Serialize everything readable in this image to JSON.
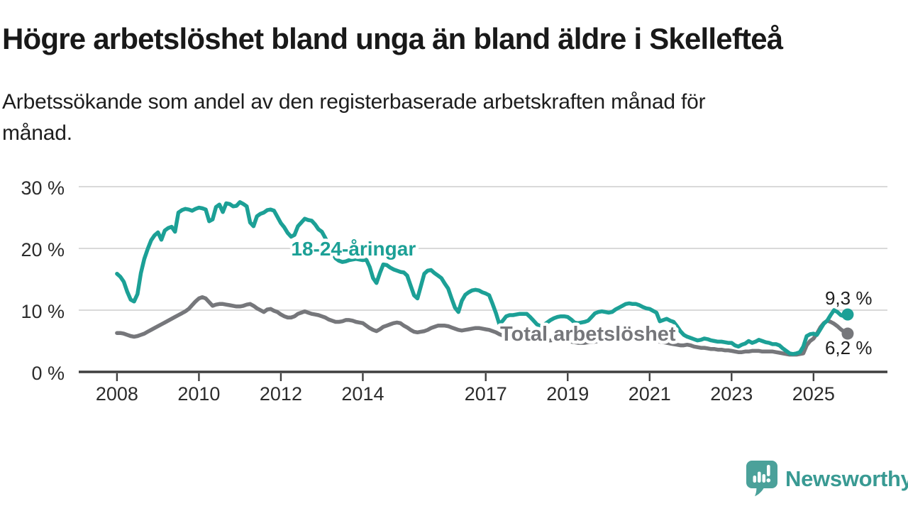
{
  "header": {
    "title": "Högre arbetslöshet bland unga än bland äldre i Skellefteå",
    "subtitle": "Arbetssökande som andel av den registerbaserade arbetskraften månad för\nmånad."
  },
  "chart_data": {
    "type": "line",
    "title": "Högre arbetslöshet bland unga än bland äldre i Skellefteå",
    "subtitle": "Arbetssökande som andel av den registerbaserade arbetskraften månad för månad.",
    "unit": "%",
    "grid": "horizontal-only",
    "legend": "inline-line-labels",
    "x_range": [
      2007.1,
      2026.8
    ],
    "y_range": [
      0,
      30
    ],
    "y_ticks": [
      {
        "value": 0,
        "label": "0 %"
      },
      {
        "value": 10,
        "label": "10 %"
      },
      {
        "value": 20,
        "label": "20 %"
      },
      {
        "value": 30,
        "label": "30 %"
      }
    ],
    "x_ticks": [
      {
        "value": 2008,
        "label": "2008"
      },
      {
        "value": 2010,
        "label": "2010"
      },
      {
        "value": 2012,
        "label": "2012"
      },
      {
        "value": 2014,
        "label": "2014"
      },
      {
        "value": 2017,
        "label": "2017"
      },
      {
        "value": 2019,
        "label": "2019"
      },
      {
        "value": 2021,
        "label": "2021"
      },
      {
        "value": 2023,
        "label": "2023"
      },
      {
        "value": 2025,
        "label": "2025"
      }
    ],
    "series": [
      {
        "key": "young",
        "name": "18-24-åringar",
        "color": "#1CA096",
        "line_label": {
          "text": "18-24-åringar",
          "anchor_year": 2012.25,
          "anchor_value": 20,
          "font_size": 28
        },
        "end_label": "9,3 %",
        "end_value": 9.3,
        "start_year": 2008,
        "frequency": "monthly",
        "values": [
          15.9,
          15.4,
          14.6,
          13.0,
          11.7,
          11.4,
          12.6,
          16.0,
          18.3,
          19.9,
          21.3,
          22.1,
          22.6,
          21.4,
          22.9,
          23.3,
          23.5,
          22.7,
          25.8,
          26.2,
          26.4,
          26.3,
          26.1,
          26.4,
          26.6,
          26.5,
          26.3,
          24.4,
          24.7,
          26.7,
          27.1,
          25.9,
          27.3,
          27.2,
          26.8,
          26.9,
          27.5,
          27.2,
          26.8,
          24.2,
          23.6,
          25.2,
          25.6,
          25.8,
          26.2,
          26.3,
          26.1,
          25.1,
          24.1,
          23.4,
          22.5,
          21.9,
          22.2,
          23.6,
          24.2,
          24.8,
          24.6,
          24.5,
          23.9,
          23.1,
          22.7,
          21.7,
          20.6,
          19.5,
          18.4,
          18.0,
          17.8,
          17.9,
          18.1,
          18.2,
          18.3,
          18.2,
          18.1,
          18.2,
          17.0,
          15.2,
          14.4,
          16.0,
          17.4,
          17.3,
          16.9,
          16.6,
          16.4,
          16.2,
          16.1,
          15.6,
          14.0,
          12.4,
          11.9,
          13.9,
          15.9,
          16.4,
          16.5,
          16.0,
          15.6,
          15.2,
          14.3,
          13.5,
          11.9,
          10.4,
          9.7,
          11.5,
          12.5,
          12.9,
          13.2,
          13.3,
          13.2,
          12.9,
          12.7,
          12.4,
          11.0,
          9.5,
          7.7,
          8.3,
          9.0,
          9.2,
          9.2,
          9.3,
          9.4,
          9.4,
          9.4,
          8.9,
          8.3,
          7.7,
          7.4,
          7.6,
          8.0,
          8.4,
          8.7,
          8.9,
          9.0,
          9.0,
          8.9,
          8.5,
          8.0,
          7.9,
          8.0,
          8.1,
          8.3,
          8.9,
          9.5,
          9.7,
          9.8,
          9.7,
          9.6,
          9.7,
          10.1,
          10.4,
          10.7,
          11.0,
          11.1,
          11.0,
          11.0,
          10.8,
          10.5,
          10.3,
          10.2,
          9.9,
          9.6,
          8.2,
          8.4,
          8.6,
          8.3,
          8.1,
          7.4,
          6.6,
          6.0,
          5.7,
          5.5,
          5.3,
          5.1,
          5.2,
          5.4,
          5.3,
          5.1,
          5.0,
          4.9,
          4.9,
          4.8,
          4.7,
          4.7,
          4.3,
          4.1,
          4.4,
          4.6,
          5.0,
          4.7,
          4.9,
          5.2,
          5.0,
          4.8,
          4.7,
          4.5,
          4.5,
          4.3,
          3.8,
          3.4,
          3.0,
          2.9,
          3.0,
          3.2,
          4.1,
          5.8,
          6.1,
          6.2,
          6.0,
          6.9,
          7.8,
          8.3,
          9.2,
          10.0,
          9.7,
          9.2,
          9.0,
          9.3
        ]
      },
      {
        "key": "total",
        "name": "Total arbetslöshet",
        "color": "#76777B",
        "line_label": {
          "text": "Total arbetslöshet",
          "anchor_year": 2017.35,
          "anchor_value": 6.2,
          "font_size": 29
        },
        "end_label": "6,2 %",
        "end_value": 6.2,
        "start_year": 2008,
        "frequency": "monthly",
        "values": [
          6.3,
          6.3,
          6.2,
          6.0,
          5.8,
          5.7,
          5.8,
          6.0,
          6.2,
          6.5,
          6.8,
          7.1,
          7.4,
          7.7,
          8.0,
          8.3,
          8.6,
          8.9,
          9.2,
          9.5,
          9.8,
          10.2,
          10.8,
          11.4,
          11.9,
          12.1,
          11.9,
          11.3,
          10.7,
          10.9,
          11.0,
          11.0,
          10.9,
          10.8,
          10.7,
          10.6,
          10.6,
          10.7,
          10.9,
          11.0,
          10.7,
          10.3,
          10.0,
          9.7,
          10.1,
          10.2,
          9.9,
          9.7,
          9.3,
          9.0,
          8.8,
          8.8,
          9.0,
          9.4,
          9.6,
          9.8,
          9.6,
          9.4,
          9.3,
          9.2,
          9.0,
          8.8,
          8.5,
          8.3,
          8.1,
          8.1,
          8.2,
          8.4,
          8.4,
          8.3,
          8.1,
          8.0,
          7.9,
          7.5,
          7.1,
          6.8,
          6.6,
          6.9,
          7.3,
          7.5,
          7.7,
          7.9,
          8.0,
          7.9,
          7.5,
          7.2,
          6.8,
          6.5,
          6.4,
          6.5,
          6.6,
          6.8,
          7.1,
          7.3,
          7.5,
          7.5,
          7.5,
          7.4,
          7.2,
          7.0,
          6.8,
          6.7,
          6.8,
          6.9,
          7.0,
          7.1,
          7.1,
          7.0,
          6.9,
          6.8,
          6.6,
          6.4,
          6.1,
          5.9,
          5.7,
          5.6,
          5.6,
          5.5,
          5.5,
          5.4,
          5.3,
          5.2,
          5.1,
          5.0,
          5.0,
          5.0,
          5.1,
          5.1,
          5.2,
          5.2,
          5.2,
          5.1,
          5.0,
          4.9,
          4.8,
          4.7,
          4.7,
          4.7,
          4.8,
          4.8,
          4.9,
          5.0,
          5.1,
          5.2,
          5.4,
          5.7,
          6.0,
          6.2,
          6.3,
          6.3,
          6.2,
          6.1,
          6.0,
          5.9,
          5.7,
          5.6,
          5.4,
          5.2,
          5.1,
          4.9,
          4.8,
          4.7,
          4.6,
          4.5,
          4.4,
          4.3,
          4.3,
          4.4,
          4.3,
          4.1,
          4.0,
          3.9,
          3.9,
          3.8,
          3.7,
          3.7,
          3.6,
          3.6,
          3.5,
          3.5,
          3.4,
          3.3,
          3.2,
          3.2,
          3.3,
          3.3,
          3.4,
          3.4,
          3.4,
          3.3,
          3.3,
          3.3,
          3.3,
          3.2,
          3.1,
          3.0,
          2.9,
          2.8,
          2.8,
          2.8,
          2.9,
          3.0,
          4.3,
          5.0,
          5.4,
          6.2,
          7.2,
          7.9,
          8.3,
          8.1,
          7.8,
          7.4,
          6.9,
          6.5,
          6.2
        ]
      }
    ]
  },
  "footer": {
    "brand_text": "Newsworthy",
    "brand_text_color": "#399A93",
    "brand_icon": "newsworthy-bubble-bar-chart-icon",
    "brand_icon_color": "#4BA19A"
  }
}
